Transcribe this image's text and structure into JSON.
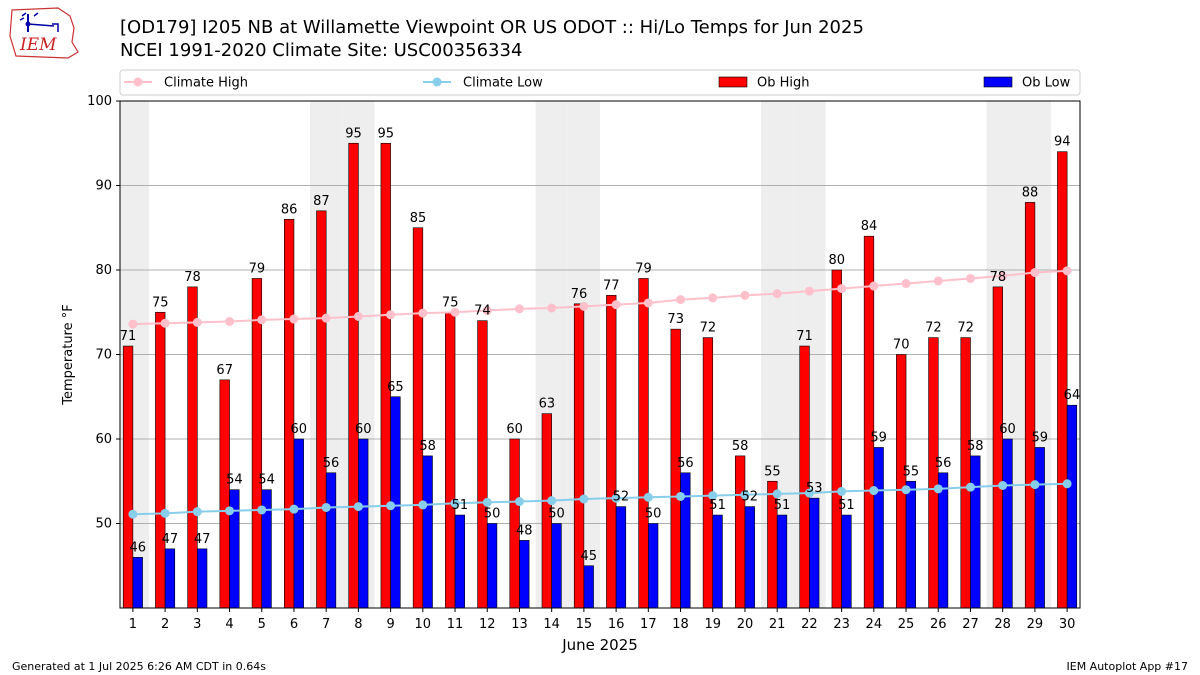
{
  "header": {
    "title_line1": "[OD179] I205 NB at Willamette Viewpoint  OR US ODOT :: Hi/Lo Temps for Jun 2025",
    "title_line2": "NCEI 1991-2020 Climate Site: USC00356334"
  },
  "logo": {
    "text": "IEM"
  },
  "footer": {
    "left": "Generated at 1 Jul 2025 6:26 AM CDT in 0.64s",
    "right": "IEM Autoplot App #17"
  },
  "colors": {
    "ob_high": "#ff0000",
    "ob_low": "#0000ff",
    "climate_high": "#ffc0cb",
    "climate_low": "#87ceeb",
    "weekend_shade": "#eeeeee",
    "grid": "#b0b0b0"
  },
  "chart_data": {
    "type": "bar",
    "xlabel": "June 2025",
    "ylabel": "Temperature °F",
    "ylim": [
      40,
      100
    ],
    "yticks": [
      50,
      60,
      70,
      80,
      90,
      100
    ],
    "grid": "horizontal",
    "legend_position": "top",
    "categories": [
      "1",
      "2",
      "3",
      "4",
      "5",
      "6",
      "7",
      "8",
      "9",
      "10",
      "11",
      "12",
      "13",
      "14",
      "15",
      "16",
      "17",
      "18",
      "19",
      "20",
      "21",
      "22",
      "23",
      "24",
      "25",
      "26",
      "27",
      "28",
      "29",
      "30"
    ],
    "shaded_days": [
      "1",
      "7",
      "8",
      "14",
      "15",
      "21",
      "22",
      "28",
      "29"
    ],
    "series": [
      {
        "name": "Climate High",
        "kind": "line",
        "values": [
          73.6,
          73.7,
          73.8,
          73.9,
          74.1,
          74.2,
          74.3,
          74.5,
          74.7,
          74.9,
          75.0,
          75.2,
          75.4,
          75.5,
          75.7,
          75.9,
          76.1,
          76.5,
          76.7,
          77.0,
          77.2,
          77.5,
          77.8,
          78.1,
          78.4,
          78.7,
          79.0,
          79.3,
          79.7,
          79.9
        ]
      },
      {
        "name": "Climate Low",
        "kind": "line",
        "values": [
          51.1,
          51.2,
          51.4,
          51.5,
          51.6,
          51.7,
          51.9,
          52.0,
          52.1,
          52.2,
          52.4,
          52.5,
          52.6,
          52.7,
          52.9,
          53.0,
          53.1,
          53.2,
          53.3,
          53.4,
          53.5,
          53.6,
          53.8,
          53.9,
          54.0,
          54.1,
          54.3,
          54.5,
          54.6,
          54.7
        ]
      },
      {
        "name": "Ob High",
        "kind": "bar",
        "values": [
          71,
          75,
          78,
          67,
          79,
          86,
          87,
          95,
          95,
          85,
          75,
          74,
          60,
          63,
          76,
          77,
          79,
          73,
          72,
          58,
          55,
          71,
          80,
          84,
          70,
          72,
          72,
          78,
          88,
          94
        ]
      },
      {
        "name": "Ob Low",
        "kind": "bar",
        "values": [
          46,
          47,
          47,
          54,
          54,
          60,
          56,
          60,
          65,
          58,
          51,
          50,
          48,
          50,
          45,
          52,
          50,
          56,
          51,
          52,
          51,
          53,
          51,
          59,
          55,
          56,
          58,
          60,
          59,
          64
        ]
      }
    ]
  }
}
